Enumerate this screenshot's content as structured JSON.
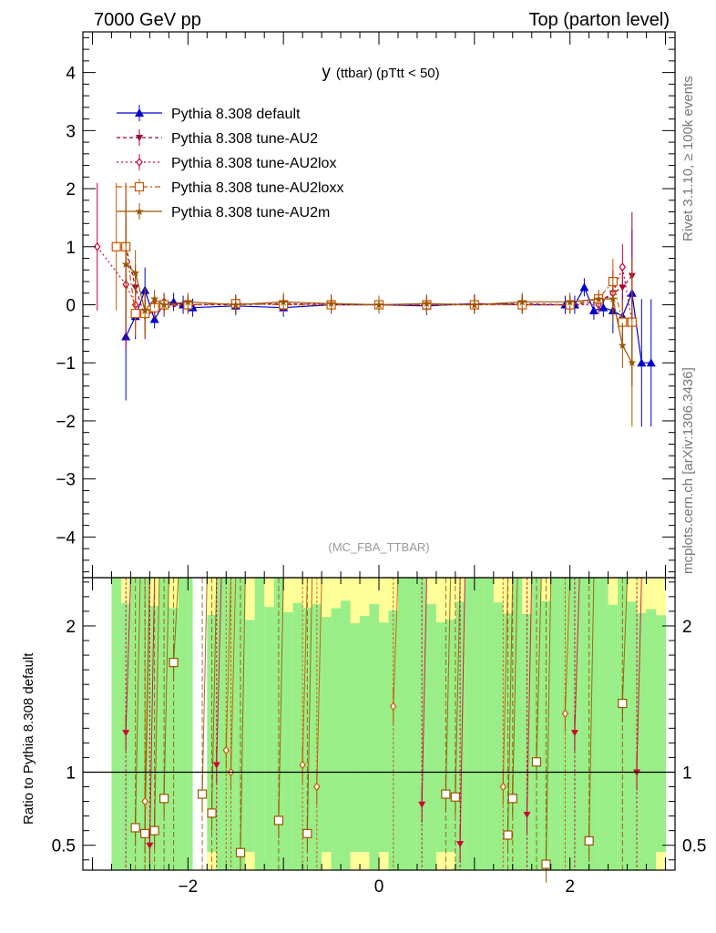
{
  "header": {
    "left": "7000 GeV pp",
    "right": "Top (parton level)"
  },
  "side_labels": {
    "rivet": "Rivet 3.1.10, ≥ 100k events",
    "mcplots": "mcplots.cern.ch [arXiv:1306.3436]"
  },
  "chart_data": {
    "type": "line",
    "title": "y (ttbar) (pTtt < 50)",
    "title_main": "y",
    "title_sub": "(ttbar) (pTtt < 50)",
    "watermark": "(MC_FBA_TTBAR)",
    "xlim": [
      -3.1,
      3.1
    ],
    "ylim": [
      -4.7,
      4.7
    ],
    "xticks": [
      "−2",
      "0",
      "2"
    ],
    "yticks": [
      "4",
      "3",
      "2",
      "1",
      "0",
      "−1",
      "−2",
      "−3",
      "−4"
    ],
    "legend_position": "top-left",
    "series": [
      {
        "name": "Pythia 8.308 default",
        "color": "#0000cc",
        "marker": "triangle-up",
        "x": [
          -2.65,
          -2.55,
          -2.45,
          -2.35,
          -2.25,
          -2.15,
          -2.05,
          -1.95,
          -1.5,
          -1.0,
          -0.5,
          0,
          0.5,
          1.0,
          1.5,
          1.95,
          2.05,
          2.15,
          2.25,
          2.35,
          2.45,
          2.55,
          2.65,
          2.75,
          2.85
        ],
        "y": [
          -0.55,
          -0.2,
          0.25,
          -0.25,
          0.02,
          0.05,
          0.0,
          -0.05,
          -0.02,
          -0.05,
          0.0,
          0.0,
          -0.02,
          0.02,
          0.0,
          0.0,
          0.0,
          0.3,
          -0.1,
          -0.05,
          -0.1,
          -0.2,
          0.2,
          -1.0,
          -1.0
        ]
      },
      {
        "name": "Pythia 8.308 tune-AU2",
        "color": "#990033",
        "marker": "triangle-down",
        "x": [
          -2.65,
          -2.55,
          -2.45,
          -2.35,
          -2.25,
          -2.0,
          -1.5,
          -1.0,
          -0.5,
          0,
          0.5,
          1.0,
          1.5,
          2.0,
          2.3,
          2.45,
          2.55,
          2.65
        ],
        "y": [
          1.0,
          0.3,
          -0.2,
          -0.1,
          -0.05,
          0.0,
          0.0,
          0.02,
          0.0,
          0.0,
          0.0,
          0.0,
          0.02,
          0.0,
          0.05,
          0.2,
          0.3,
          0.5
        ]
      },
      {
        "name": "Pythia 8.308 tune-AU2lox",
        "color": "#cc0033",
        "marker": "diamond-open",
        "x": [
          -2.95,
          -2.65,
          -2.55,
          -2.45,
          -2.35,
          -2.25,
          -2.0,
          -1.5,
          -1.0,
          -0.5,
          0,
          0.5,
          1.0,
          1.5,
          2.0,
          2.3,
          2.45,
          2.55,
          2.65
        ],
        "y": [
          1.0,
          0.35,
          0.0,
          -0.15,
          0.0,
          0.05,
          0.0,
          0.02,
          0.0,
          0.02,
          0.0,
          0.0,
          0.02,
          0.0,
          0.0,
          0.0,
          0.2,
          0.65,
          -0.3
        ]
      },
      {
        "name": "Pythia 8.308 tune-AU2loxx",
        "color": "#cc5500",
        "marker": "square-open",
        "x": [
          -2.75,
          -2.65,
          -2.55,
          -2.45,
          -2.35,
          -2.25,
          -2.0,
          -1.5,
          -1.0,
          -0.5,
          0,
          0.5,
          1.0,
          1.5,
          2.0,
          2.3,
          2.45,
          2.55,
          2.65
        ],
        "y": [
          1.0,
          1.0,
          -0.15,
          -0.15,
          -0.05,
          0.0,
          0.0,
          0.02,
          0.0,
          0.0,
          0.0,
          0.0,
          0.0,
          0.0,
          0.0,
          0.1,
          0.4,
          -0.3,
          -0.3
        ]
      },
      {
        "name": "Pythia 8.308 tune-AU2m",
        "color": "#995500",
        "marker": "star",
        "x": [
          -2.65,
          -2.55,
          -2.45,
          -2.35,
          -2.25,
          -2.0,
          -1.5,
          -1.0,
          -0.5,
          0,
          0.5,
          1.0,
          1.5,
          2.0,
          2.3,
          2.45,
          2.55,
          2.65
        ],
        "y": [
          0.7,
          0.55,
          -0.1,
          0.1,
          0.0,
          0.05,
          0.0,
          0.05,
          0.02,
          0.0,
          0.02,
          0.0,
          0.05,
          0.05,
          0.1,
          0.1,
          -0.7,
          -1.0
        ]
      }
    ],
    "ratio": {
      "ylabel": "Ratio to Pythia 8.308 default",
      "ylim": [
        0.33,
        2.33
      ],
      "yticks": [
        "2",
        "1",
        "0.5"
      ],
      "reference": 1,
      "points": [
        {
          "x": -2.65,
          "y": 1.27,
          "s": 1
        },
        {
          "x": -2.55,
          "y": 0.62,
          "s": 3
        },
        {
          "x": -2.45,
          "y": 0.8,
          "s": 2
        },
        {
          "x": -2.45,
          "y": 0.58,
          "s": 3
        },
        {
          "x": -2.4,
          "y": 0.5,
          "s": 1
        },
        {
          "x": -2.35,
          "y": 0.6,
          "s": 3
        },
        {
          "x": -2.25,
          "y": 0.82,
          "s": 3
        },
        {
          "x": -2.15,
          "y": 1.75,
          "s": 3
        },
        {
          "x": -1.85,
          "y": 0.85,
          "s": 3
        },
        {
          "x": -1.75,
          "y": 0.72,
          "s": 3
        },
        {
          "x": -1.7,
          "y": 1.05,
          "s": 1
        },
        {
          "x": -1.6,
          "y": 1.15,
          "s": 2
        },
        {
          "x": -1.55,
          "y": 1.0,
          "s": 2
        },
        {
          "x": -1.45,
          "y": 0.45,
          "s": 3
        },
        {
          "x": -1.05,
          "y": 0.67,
          "s": 3
        },
        {
          "x": -0.8,
          "y": 1.05,
          "s": 2
        },
        {
          "x": -0.75,
          "y": 0.58,
          "s": 3
        },
        {
          "x": -0.65,
          "y": 0.9,
          "s": 2
        },
        {
          "x": 0.15,
          "y": 1.45,
          "s": 2
        },
        {
          "x": 0.45,
          "y": 0.78,
          "s": 1
        },
        {
          "x": 0.7,
          "y": 0.85,
          "s": 3
        },
        {
          "x": 0.8,
          "y": 0.83,
          "s": 3
        },
        {
          "x": 0.85,
          "y": 0.51,
          "s": 1
        },
        {
          "x": 1.3,
          "y": 0.9,
          "s": 2
        },
        {
          "x": 1.35,
          "y": 0.57,
          "s": 3
        },
        {
          "x": 1.4,
          "y": 0.82,
          "s": 3
        },
        {
          "x": 1.55,
          "y": 0.71,
          "s": 1
        },
        {
          "x": 1.65,
          "y": 1.07,
          "s": 3
        },
        {
          "x": 1.75,
          "y": 0.37,
          "s": 3
        },
        {
          "x": 1.95,
          "y": 1.4,
          "s": 2
        },
        {
          "x": 2.05,
          "y": 1.27,
          "s": 1
        },
        {
          "x": 2.2,
          "y": 0.53,
          "s": 3
        },
        {
          "x": 2.55,
          "y": 1.47,
          "s": 3
        },
        {
          "x": 2.7,
          "y": 1.0,
          "s": 1
        }
      ]
    }
  }
}
